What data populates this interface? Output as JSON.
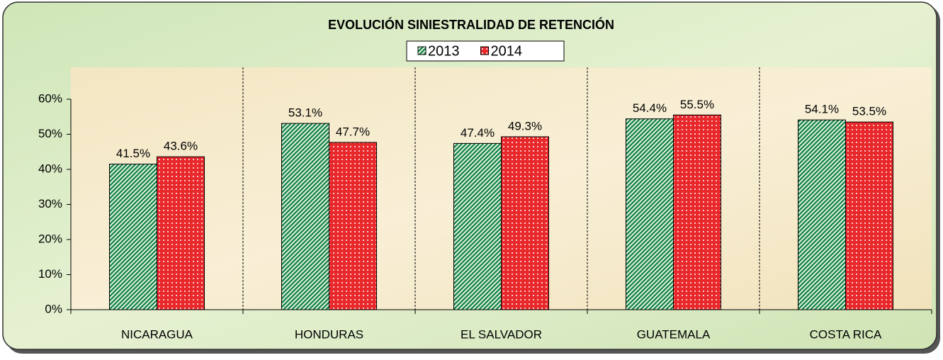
{
  "chart_data": {
    "type": "bar",
    "title": "EVOLUCIÓN SINIESTRALIDAD DE RETENCIÓN",
    "categories": [
      "NICARAGUA",
      "HONDURAS",
      "EL SALVADOR",
      "GUATEMALA",
      "COSTA RICA"
    ],
    "series": [
      {
        "name": "2013",
        "color": "#1e8a4a",
        "values": [
          41.5,
          53.1,
          47.4,
          54.4,
          54.1
        ],
        "value_labels": [
          "41.5%",
          "53.1%",
          "47.4%",
          "54.4%",
          "54.1%"
        ]
      },
      {
        "name": "2014",
        "color": "#e8282b",
        "values": [
          43.6,
          47.7,
          49.3,
          55.5,
          53.5
        ],
        "value_labels": [
          "43.6%",
          "47.7%",
          "49.3%",
          "55.5%",
          "53.5%"
        ]
      }
    ],
    "ylim": [
      0,
      60
    ],
    "yticks": [
      {
        "value": 0,
        "label": "0%"
      },
      {
        "value": 10,
        "label": "10%"
      },
      {
        "value": 20,
        "label": "20%"
      },
      {
        "value": 30,
        "label": "30%"
      },
      {
        "value": 40,
        "label": "40%"
      },
      {
        "value": 50,
        "label": "50%"
      },
      {
        "value": 60,
        "label": "60%"
      }
    ],
    "legend": "top",
    "grid": false
  }
}
